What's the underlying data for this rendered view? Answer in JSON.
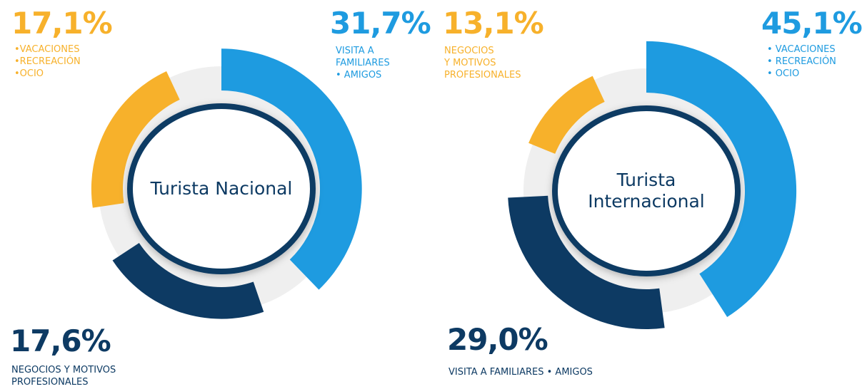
{
  "chart_data": [
    {
      "type": "donut",
      "title": "Turista Nacional",
      "categories": [
        "VISITA A\nFAMILIARES\n• AMIGOS",
        "NEGOCIOS Y MOTIVOS\nPROFESIONALES",
        "•VACACIONES\n•RECREACIÓN\n•OCIO"
      ],
      "values": [
        31.7,
        17.6,
        17.1
      ],
      "value_labels": [
        "31,7%",
        "17,6%",
        "17,1%"
      ],
      "colors": [
        "#1e9be0",
        "#0d3a63",
        "#f7b12b"
      ]
    },
    {
      "type": "donut",
      "title": "Turista Internacional",
      "categories": [
        "• VACACIONES\n• RECREACIÓN\n• OCIO",
        "VISITA A FAMILIARES • AMIGOS",
        "NEGOCIOS\nY MOTIVOS\nPROFESIONALES"
      ],
      "values": [
        45.1,
        29.0,
        13.1
      ],
      "value_labels": [
        "45,1%",
        "29,0%",
        "13,1%"
      ],
      "colors": [
        "#1e9be0",
        "#0d3a63",
        "#f7b12b"
      ]
    }
  ]
}
